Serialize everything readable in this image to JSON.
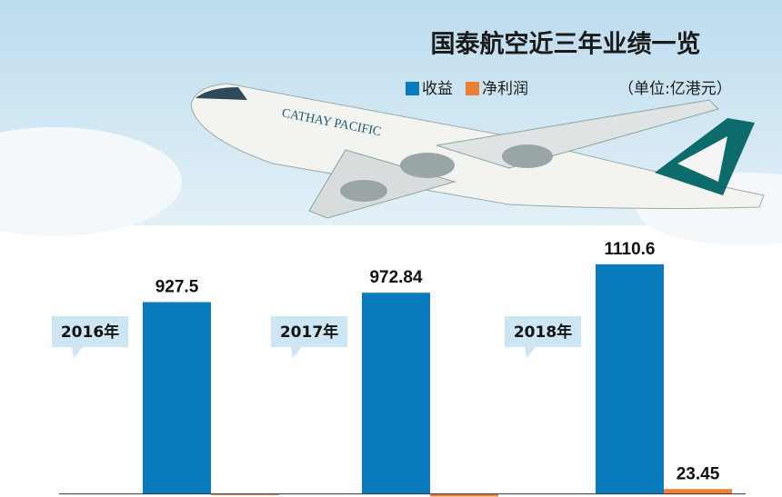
{
  "chart_data": {
    "type": "bar",
    "title": "国泰航空近三年业绩一览",
    "unit": "（单位:亿港元）",
    "categories": [
      "2016年",
      "2017年",
      "2018年"
    ],
    "series": [
      {
        "name": "收益",
        "color": "#0a7bbd",
        "values": [
          927.5,
          972.84,
          1110.6
        ],
        "value_labels": [
          "927.5",
          "972.84",
          "1110.6"
        ]
      },
      {
        "name": "净利润",
        "color": "#ee7f33",
        "values": [
          -5.75,
          -12.59,
          23.45
        ],
        "value_labels": [
          null,
          null,
          "23.45"
        ]
      }
    ],
    "ylim": [
      -15,
      1290
    ]
  }
}
